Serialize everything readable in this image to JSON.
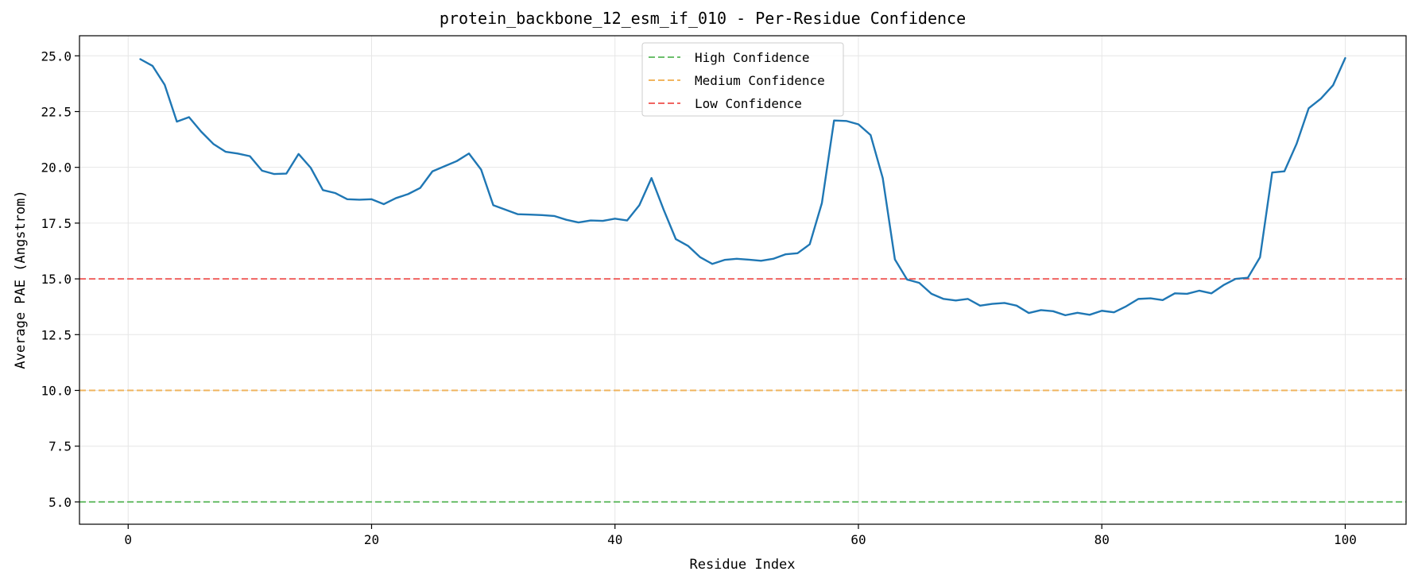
{
  "chart_data": {
    "type": "line",
    "title": "protein_backbone_12_esm_if_010 - Per-Residue Confidence",
    "xlabel": "Residue Index",
    "ylabel": "Average PAE (Angstrom)",
    "xlim": [
      -4,
      105
    ],
    "ylim": [
      4.0,
      25.9
    ],
    "xticks": [
      0,
      20,
      40,
      60,
      80,
      100
    ],
    "xtick_labels": [
      "0",
      "20",
      "40",
      "60",
      "80",
      "100"
    ],
    "yticks": [
      5.0,
      7.5,
      10.0,
      12.5,
      15.0,
      17.5,
      20.0,
      22.5,
      25.0
    ],
    "ytick_labels": [
      "5.0",
      "7.5",
      "10.0",
      "12.5",
      "15.0",
      "17.5",
      "20.0",
      "22.5",
      "25.0"
    ],
    "grid": true,
    "legend_position": "top-center",
    "series": [
      {
        "color": "#1f77b4",
        "x": [
          1,
          2,
          3,
          4,
          5,
          6,
          7,
          8,
          9,
          10,
          11,
          12,
          13,
          14,
          15,
          16,
          17,
          18,
          19,
          20,
          21,
          22,
          23,
          24,
          25,
          26,
          27,
          28,
          29,
          30,
          31,
          32,
          33,
          34,
          35,
          36,
          37,
          38,
          39,
          40,
          41,
          42,
          43,
          44,
          45,
          46,
          47,
          48,
          49,
          50,
          51,
          52,
          53,
          54,
          55,
          56,
          57,
          58,
          59,
          60,
          61,
          62,
          63,
          64,
          65,
          66,
          67,
          68,
          69,
          70,
          71,
          72,
          73,
          74,
          75,
          76,
          77,
          78,
          79,
          80,
          81,
          82,
          83,
          84,
          85,
          86,
          87,
          88,
          89,
          90,
          91,
          92,
          93,
          94,
          95,
          96,
          97,
          98,
          99,
          100
        ],
        "values": [
          24.85,
          24.55,
          23.7,
          22.05,
          22.25,
          21.6,
          21.05,
          20.7,
          20.62,
          20.5,
          19.85,
          19.7,
          19.72,
          20.6,
          19.98,
          18.98,
          18.85,
          18.57,
          18.55,
          18.57,
          18.35,
          18.62,
          18.8,
          19.08,
          19.82,
          20.05,
          20.28,
          20.62,
          19.9,
          18.3,
          18.1,
          17.9,
          17.88,
          17.86,
          17.82,
          17.65,
          17.53,
          17.62,
          17.6,
          17.7,
          17.62,
          18.3,
          19.52,
          18.1,
          16.78,
          16.48,
          15.97,
          15.67,
          15.85,
          15.9,
          15.86,
          15.81,
          15.9,
          16.1,
          16.15,
          16.55,
          18.4,
          22.1,
          22.08,
          21.93,
          21.45,
          19.52,
          15.87,
          14.97,
          14.82,
          14.33,
          14.1,
          14.03,
          14.1,
          13.8,
          13.88,
          13.92,
          13.8,
          13.47,
          13.6,
          13.55,
          13.37,
          13.48,
          13.39,
          13.57,
          13.5,
          13.77,
          14.1,
          14.13,
          14.05,
          14.35,
          14.33,
          14.47,
          14.35,
          14.72,
          15.0,
          15.05,
          15.97,
          19.77,
          19.82,
          21.05,
          22.65,
          23.08,
          23.68,
          24.9
        ]
      }
    ],
    "reference_lines": [
      {
        "name": "High Confidence",
        "y": 5.0,
        "color": "#5cb85c"
      },
      {
        "name": "Medium Confidence",
        "y": 10.0,
        "color": "#f0ad4e"
      },
      {
        "name": "Low Confidence",
        "y": 15.0,
        "color": "#ef5350"
      }
    ]
  }
}
